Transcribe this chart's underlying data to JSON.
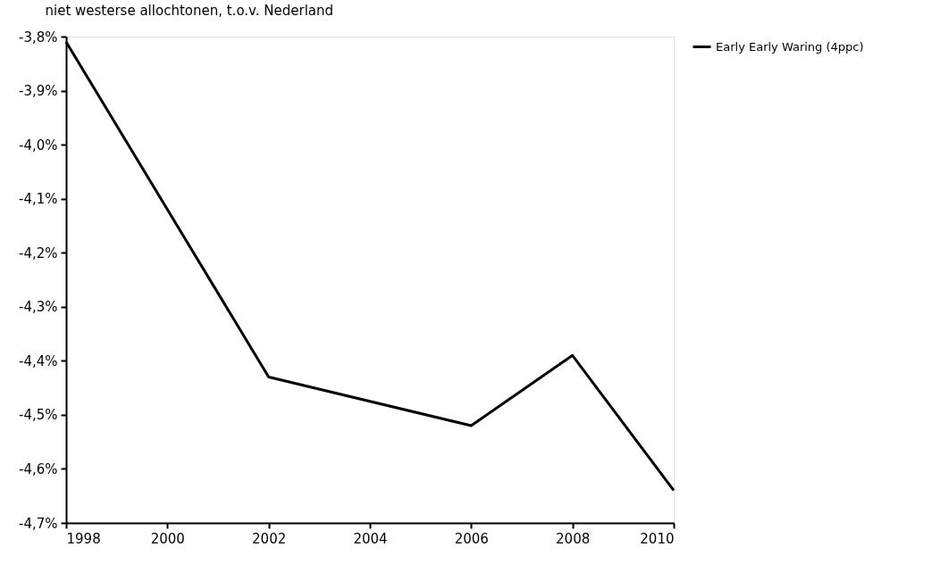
{
  "chart_data": {
    "type": "line",
    "title": "niet westerse allochtonen, t.o.v. Nederland",
    "x": [
      1998,
      2002,
      2006,
      2008,
      2010
    ],
    "series": [
      {
        "name": "Early Early Waring (4ppc)",
        "color": "#000000",
        "values": [
          -3.81,
          -4.43,
          -4.52,
          -4.39,
          -4.64
        ]
      }
    ],
    "xlim": [
      1998,
      2010
    ],
    "xticks": [
      1998,
      2000,
      2002,
      2004,
      2006,
      2008,
      2010
    ],
    "ylim": [
      -4.7,
      -3.8
    ],
    "yticks": [
      {
        "value": -4.7,
        "label": "-4,7%"
      },
      {
        "value": -4.6,
        "label": "-4,6%"
      },
      {
        "value": -4.5,
        "label": "-4,5%"
      },
      {
        "value": -4.4,
        "label": "-4,4%"
      },
      {
        "value": -4.3,
        "label": "-4,3%"
      },
      {
        "value": -4.2,
        "label": "-4,2%"
      },
      {
        "value": -4.1,
        "label": "-4,1%"
      },
      {
        "value": -4.0,
        "label": "-4,0%"
      },
      {
        "value": -3.9,
        "label": "-3,9%"
      },
      {
        "value": -3.8,
        "label": "-3,8%"
      }
    ],
    "grid": false,
    "legend": "top right",
    "marker": "none",
    "line_style": "solid"
  }
}
